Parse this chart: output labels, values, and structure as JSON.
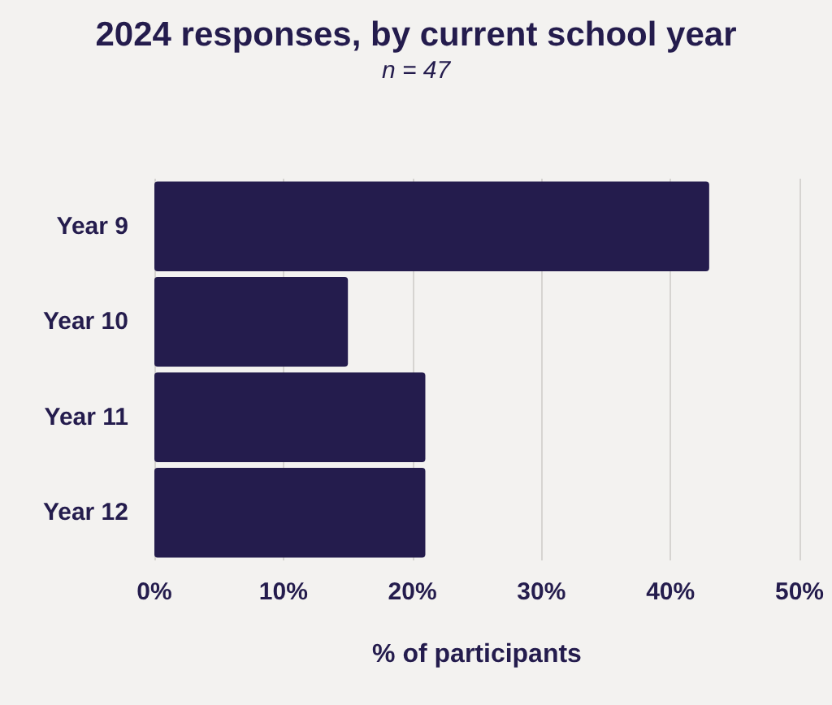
{
  "chart_data": {
    "type": "bar",
    "orientation": "horizontal",
    "title": "2024 responses, by current school year",
    "subtitle": "n = 47",
    "xlabel": "% of participants",
    "categories": [
      "Year 9",
      "Year 10",
      "Year 11",
      "Year 12"
    ],
    "values": [
      43,
      15,
      21,
      21
    ],
    "color": "#241c4d",
    "xlim": [
      0,
      50
    ],
    "xticks": [
      {
        "value": 0,
        "label": "0%"
      },
      {
        "value": 10,
        "label": "10%"
      },
      {
        "value": 20,
        "label": "20%"
      },
      {
        "value": 30,
        "label": "30%"
      },
      {
        "value": 40,
        "label": "40%"
      },
      {
        "value": 50,
        "label": "50%"
      }
    ],
    "grid": "x"
  }
}
